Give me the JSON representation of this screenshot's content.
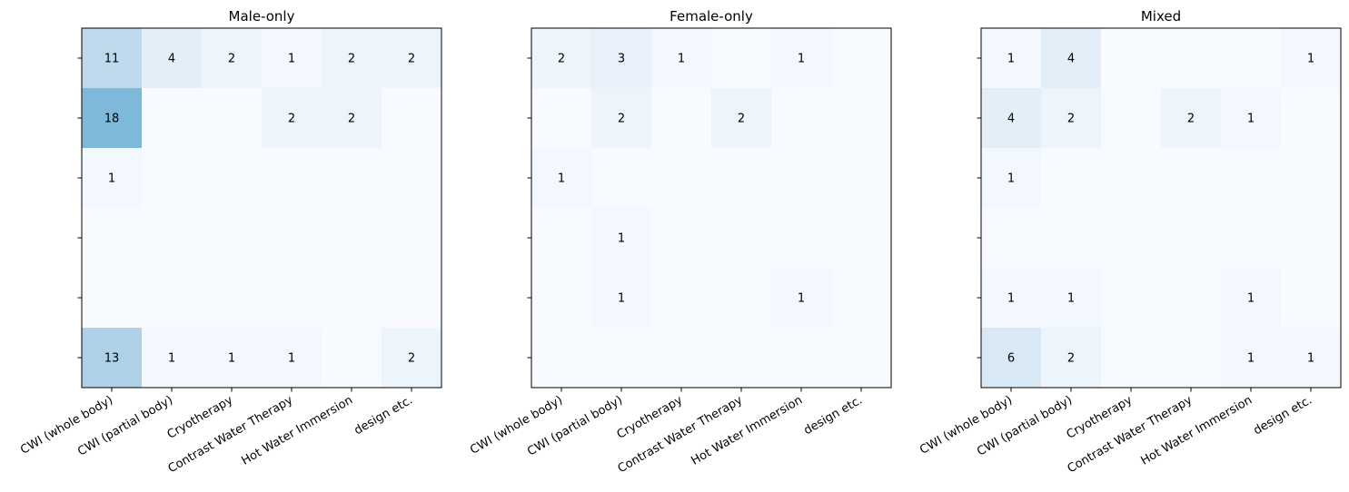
{
  "chart_data": [
    {
      "type": "heatmap",
      "title": "Male-only",
      "x_categories": [
        "CWI (whole body)",
        "CWI (partial body)",
        "Cryotherapy",
        "Contrast Water Therapy",
        "Hot Water Immersion",
        "design etc."
      ],
      "y_categories": [
        "",
        "",
        "",
        "",
        "",
        ""
      ],
      "values": [
        [
          11,
          4,
          2,
          1,
          2,
          2
        ],
        [
          18,
          0,
          0,
          2,
          2,
          0
        ],
        [
          1,
          0,
          0,
          0,
          0,
          0
        ],
        [
          0,
          0,
          0,
          0,
          0,
          0
        ],
        [
          0,
          0,
          0,
          0,
          0,
          0
        ],
        [
          13,
          1,
          1,
          1,
          0,
          2
        ]
      ],
      "colormap": "Blues",
      "vmin": 0,
      "vmax": 40,
      "show_zero_labels": false
    },
    {
      "type": "heatmap",
      "title": "Female-only",
      "x_categories": [
        "CWI (whole body)",
        "CWI (partial body)",
        "Cryotherapy",
        "Contrast Water Therapy",
        "Hot Water Immersion",
        "design etc."
      ],
      "y_categories": [
        "",
        "",
        "",
        "",
        "",
        ""
      ],
      "values": [
        [
          2,
          3,
          1,
          0,
          1,
          0
        ],
        [
          0,
          2,
          0,
          2,
          0,
          0
        ],
        [
          1,
          0,
          0,
          0,
          0,
          0
        ],
        [
          0,
          1,
          0,
          0,
          0,
          0
        ],
        [
          0,
          1,
          0,
          0,
          1,
          0
        ],
        [
          0,
          0,
          0,
          0,
          0,
          0
        ]
      ],
      "colormap": "Blues",
      "vmin": 0,
      "vmax": 40,
      "show_zero_labels": false
    },
    {
      "type": "heatmap",
      "title": "Mixed",
      "x_categories": [
        "CWI (whole body)",
        "CWI (partial body)",
        "Cryotherapy",
        "Contrast Water Therapy",
        "Hot Water Immersion",
        "design etc."
      ],
      "y_categories": [
        "",
        "",
        "",
        "",
        "",
        ""
      ],
      "values": [
        [
          1,
          4,
          0,
          0,
          0,
          1
        ],
        [
          4,
          2,
          0,
          2,
          1,
          0
        ],
        [
          1,
          0,
          0,
          0,
          0,
          0
        ],
        [
          0,
          0,
          0,
          0,
          0,
          0
        ],
        [
          1,
          1,
          0,
          0,
          1,
          0
        ],
        [
          6,
          2,
          0,
          0,
          1,
          1
        ]
      ],
      "colormap": "Blues",
      "vmin": 0,
      "vmax": 40,
      "show_zero_labels": false
    }
  ]
}
